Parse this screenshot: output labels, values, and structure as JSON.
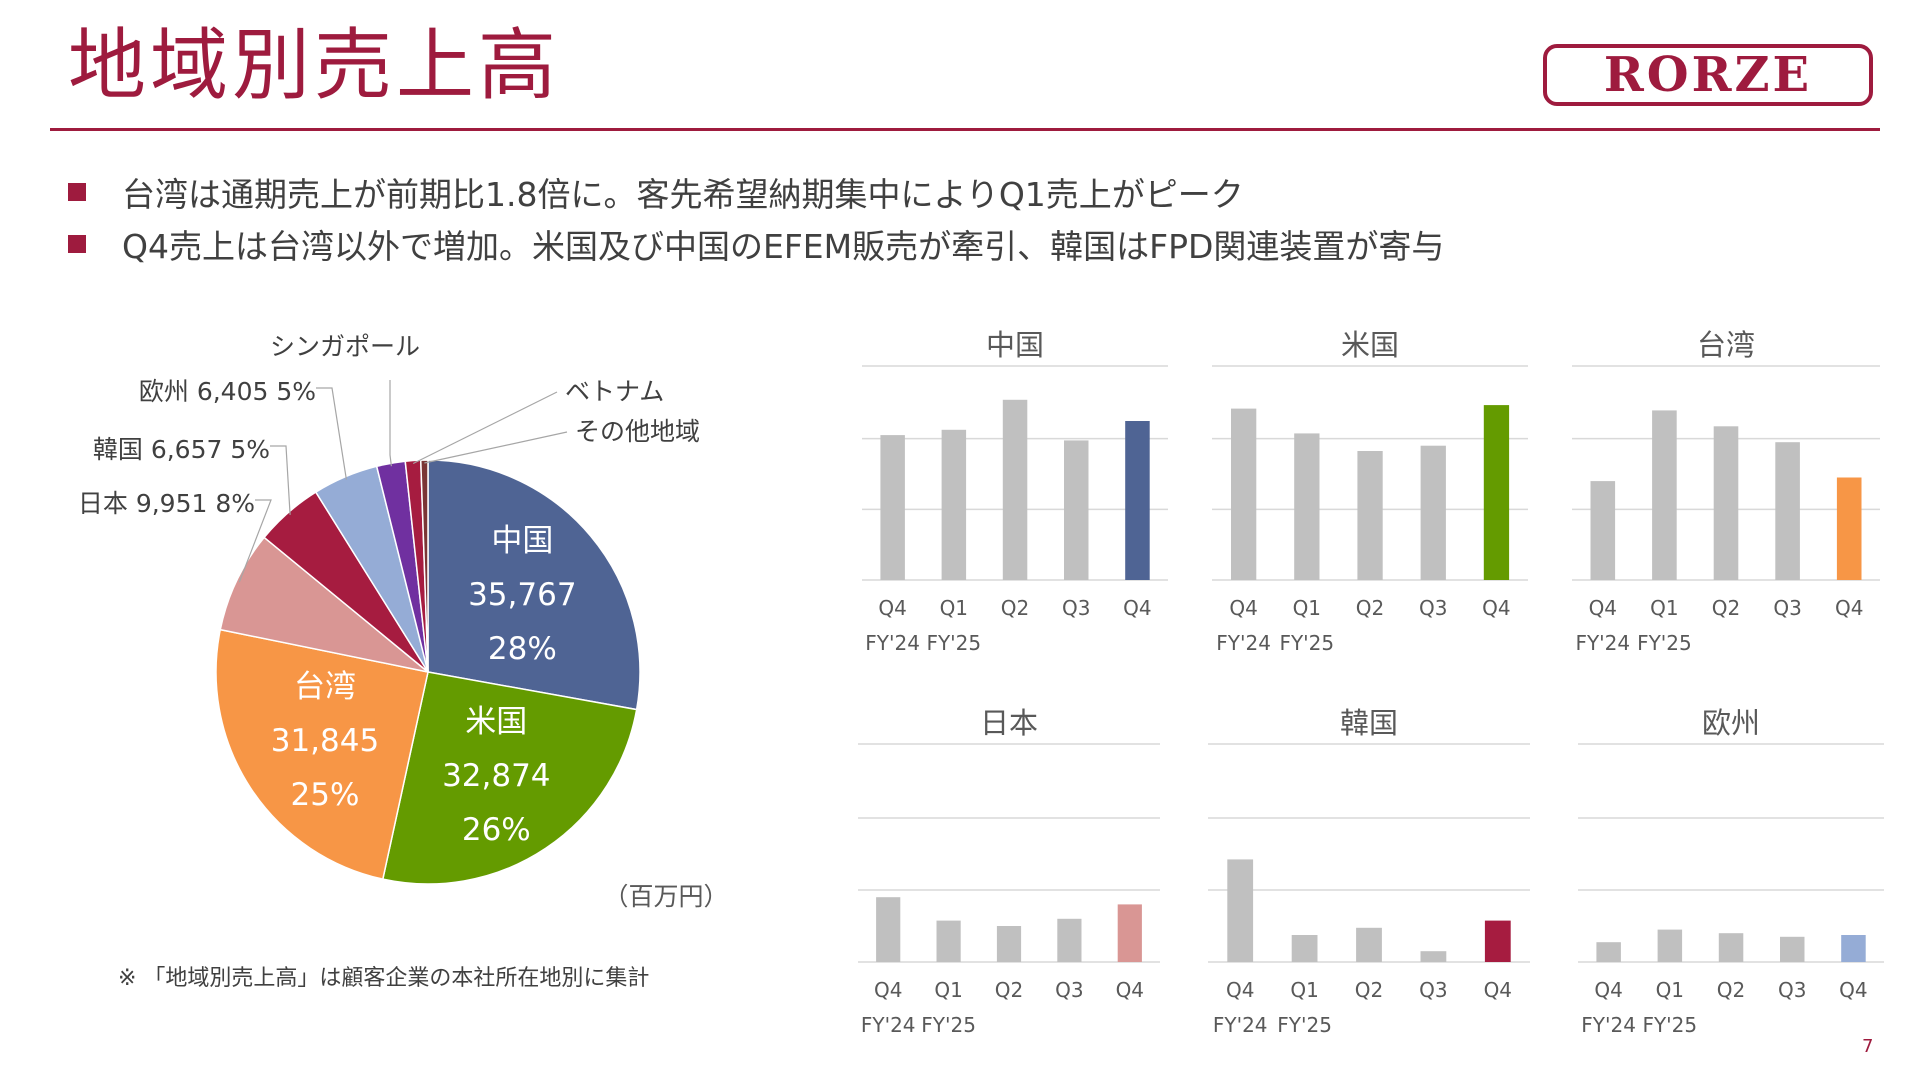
{
  "header": {
    "title": "地域別売上高",
    "logo_text": "RORZE"
  },
  "bullets": [
    "台湾は通期売上が前期比1.8倍に。客先希望納期集中によりQ1売上がピーク",
    "Q4売上は台湾以外で増加。米国及び中国のEFEM販売が牽引、韓国はFPD関連装置が寄与"
  ],
  "footnote": "※ 「地域別売上高」は顧客企業の本社所在地別に集計",
  "unit_label": "（百万円）",
  "page_number": "7",
  "colors": {
    "brand": "#9e1b3e",
    "china": "#4f6494",
    "usa": "#649b00",
    "taiwan": "#f79646",
    "japan": "#d99694",
    "korea": "#a61c40",
    "europe": "#95acd6",
    "singapore": "#7030a0",
    "vietnam": "#a61c40",
    "other": "#7b3536",
    "bar_gray": "#c0c0c0",
    "grid": "#d9d9d9"
  },
  "chart_data": [
    {
      "type": "pie",
      "title": "",
      "slices": [
        {
          "name": "中国",
          "value": 35767,
          "value_label": "35,767",
          "pct": "28%",
          "color": "#4f6494"
        },
        {
          "name": "米国",
          "value": 32874,
          "value_label": "32,874",
          "pct": "26%",
          "color": "#649b00"
        },
        {
          "name": "台湾",
          "value": 31845,
          "value_label": "31,845",
          "pct": "25%",
          "color": "#f79646"
        },
        {
          "name": "日本",
          "value": 9951,
          "value_label": "9,951",
          "pct": "8%",
          "color": "#d99694"
        },
        {
          "name": "韓国",
          "value": 6657,
          "value_label": "6,657",
          "pct": "5%",
          "color": "#a61c40"
        },
        {
          "name": "欧州",
          "value": 6405,
          "value_label": "6,405",
          "pct": "5%",
          "color": "#95acd6"
        },
        {
          "name": "シンガポール",
          "value": 2800,
          "color": "#7030a0"
        },
        {
          "name": "ベトナム",
          "value": 1500,
          "color": "#a61c40"
        },
        {
          "name": "その他地域",
          "value": 700,
          "color": "#7b3536"
        }
      ]
    },
    {
      "type": "bar",
      "title": "中国",
      "categories": [
        "Q4",
        "Q1",
        "Q2",
        "Q3",
        "Q4"
      ],
      "fy_labels": [
        "FY'24",
        "FY'25"
      ],
      "values": [
        0.82,
        0.85,
        1.02,
        0.79,
        0.9
      ],
      "ylim": [
        0,
        1.2
      ],
      "highlight": 4,
      "highlight_color": "#4f6494"
    },
    {
      "type": "bar",
      "title": "米国",
      "categories": [
        "Q4",
        "Q1",
        "Q2",
        "Q3",
        "Q4"
      ],
      "fy_labels": [
        "FY'24",
        "FY'25"
      ],
      "values": [
        0.97,
        0.83,
        0.73,
        0.76,
        0.99
      ],
      "ylim": [
        0,
        1.2
      ],
      "highlight": 4,
      "highlight_color": "#649b00"
    },
    {
      "type": "bar",
      "title": "台湾",
      "categories": [
        "Q4",
        "Q1",
        "Q2",
        "Q3",
        "Q4"
      ],
      "fy_labels": [
        "FY'24",
        "FY'25"
      ],
      "values": [
        0.56,
        0.96,
        0.87,
        0.78,
        0.58
      ],
      "ylim": [
        0,
        1.2
      ],
      "highlight": 4,
      "highlight_color": "#f79646"
    },
    {
      "type": "bar",
      "title": "日本",
      "categories": [
        "Q4",
        "Q1",
        "Q2",
        "Q3",
        "Q4"
      ],
      "fy_labels": [
        "FY'24",
        "FY'25"
      ],
      "values": [
        0.36,
        0.23,
        0.2,
        0.24,
        0.32
      ],
      "ylim": [
        0,
        1.2
      ],
      "highlight": 4,
      "highlight_color": "#d99694"
    },
    {
      "type": "bar",
      "title": "韓国",
      "categories": [
        "Q4",
        "Q1",
        "Q2",
        "Q3",
        "Q4"
      ],
      "fy_labels": [
        "FY'24",
        "FY'25"
      ],
      "values": [
        0.57,
        0.15,
        0.19,
        0.06,
        0.23
      ],
      "ylim": [
        0,
        1.2
      ],
      "highlight": 4,
      "highlight_color": "#a61c40"
    },
    {
      "type": "bar",
      "title": "欧州",
      "categories": [
        "Q4",
        "Q1",
        "Q2",
        "Q3",
        "Q4"
      ],
      "fy_labels": [
        "FY'24",
        "FY'25"
      ],
      "values": [
        0.11,
        0.18,
        0.16,
        0.14,
        0.15
      ],
      "ylim": [
        0,
        1.2
      ],
      "highlight": 4,
      "highlight_color": "#95acd6"
    }
  ]
}
